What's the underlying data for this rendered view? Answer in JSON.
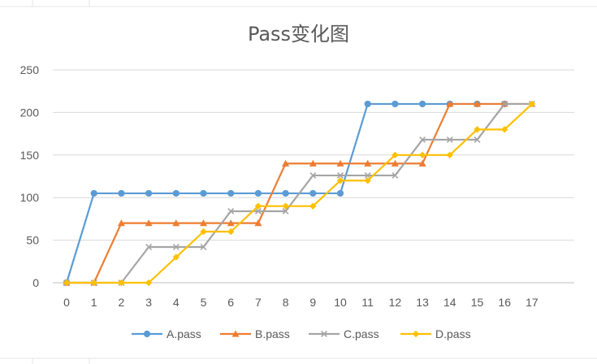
{
  "chart_title": "Pass变化图",
  "chart_data": {
    "type": "line",
    "title": "Pass变化图",
    "xlabel": "",
    "ylabel": "",
    "categories": [
      "0",
      "1",
      "2",
      "3",
      "4",
      "5",
      "6",
      "7",
      "8",
      "9",
      "10",
      "11",
      "12",
      "13",
      "14",
      "15",
      "16",
      "17"
    ],
    "ylim": [
      0,
      250
    ],
    "yticks": [
      0,
      50,
      100,
      150,
      200,
      250
    ],
    "grid": true,
    "legend_position": "bottom",
    "series": [
      {
        "name": "A.pass",
        "color": "#5B9BD5",
        "marker": "circle",
        "values": [
          0,
          105,
          105,
          105,
          105,
          105,
          105,
          105,
          105,
          105,
          105,
          210,
          210,
          210,
          210,
          210,
          210,
          null
        ]
      },
      {
        "name": "B.pass",
        "color": "#ED7D31",
        "marker": "triangle",
        "values": [
          0,
          0,
          70,
          70,
          70,
          70,
          70,
          70,
          140,
          140,
          140,
          140,
          140,
          140,
          210,
          210,
          210,
          210
        ]
      },
      {
        "name": "C.pass",
        "color": "#A5A5A5",
        "marker": "x",
        "values": [
          0,
          0,
          0,
          42,
          42,
          42,
          84,
          84,
          84,
          126,
          126,
          126,
          126,
          168,
          168,
          168,
          210,
          210
        ]
      },
      {
        "name": "D.pass",
        "color": "#FFC000",
        "marker": "diamond",
        "values": [
          0,
          0,
          0,
          0,
          30,
          60,
          60,
          90,
          90,
          90,
          120,
          120,
          150,
          150,
          150,
          180,
          180,
          210
        ]
      }
    ]
  }
}
